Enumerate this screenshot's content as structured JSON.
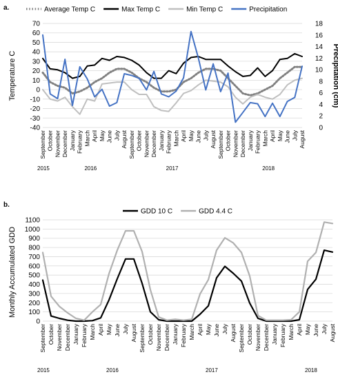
{
  "chart_data": [
    {
      "panel_label": "a.",
      "type": "line",
      "x": [
        "September",
        "October",
        "November",
        "December",
        "January",
        "February",
        "March",
        "April",
        "May",
        "June",
        "July",
        "August",
        "September",
        "October",
        "November",
        "December",
        "January",
        "February",
        "March",
        "April",
        "May",
        "June",
        "July",
        "August",
        "September",
        "October",
        "November",
        "December",
        "January",
        "February",
        "March",
        "April",
        "May",
        "June",
        "July",
        "August"
      ],
      "year_labels": [
        {
          "text": "2015",
          "index": 0
        },
        {
          "text": "2016",
          "index": 6
        },
        {
          "text": "2017",
          "index": 17
        },
        {
          "text": "2018",
          "index": 30
        }
      ],
      "ylabel": "Temperature C",
      "y2label": "Precipitation (cm)",
      "ylim": [
        -40,
        70
      ],
      "yticks": [
        -40,
        -30,
        -20,
        -10,
        0,
        10,
        20,
        30,
        40,
        50,
        60,
        70
      ],
      "y2lim": [
        0,
        18
      ],
      "y2ticks": [
        0,
        2,
        4,
        6,
        8,
        10,
        12,
        14,
        16,
        18
      ],
      "legend_position": "top",
      "series": [
        {
          "name": "Average Temp C",
          "axis": "left",
          "color": "#808080",
          "dash": "dotted",
          "values": [
            18,
            8,
            4,
            2,
            -4,
            -2,
            2,
            8,
            12,
            18,
            22,
            22,
            18,
            12,
            8,
            2,
            -2,
            -2,
            0,
            8,
            12,
            18,
            22,
            22,
            20,
            12,
            4,
            -4,
            -6,
            -4,
            0,
            4,
            12,
            18,
            24,
            24
          ]
        },
        {
          "name": "Max Temp C",
          "axis": "left",
          "color": "#000000",
          "dash": "solid",
          "values": [
            33,
            22,
            21,
            18,
            12,
            14,
            25,
            26,
            33,
            31,
            35,
            34,
            31,
            26,
            18,
            12,
            12,
            20,
            17,
            28,
            34,
            35,
            32,
            32,
            32,
            25,
            19,
            14,
            15,
            23,
            14,
            20,
            32,
            33,
            38,
            35
          ]
        },
        {
          "name": "Min Temp C",
          "axis": "left",
          "color": "#bfbfbf",
          "dash": "solid",
          "values": [
            0,
            -10,
            -12,
            -8,
            -18,
            -26,
            -10,
            -12,
            6,
            7,
            8,
            8,
            0,
            -5,
            -5,
            -18,
            -22,
            -23,
            -14,
            -4,
            -1,
            5,
            10,
            9,
            8,
            3,
            -8,
            -15,
            -8,
            -5,
            -8,
            -10,
            -5,
            5,
            10,
            12
          ]
        },
        {
          "name": "Precipitation",
          "axis": "right",
          "color": "#4472c4",
          "dash": "solid",
          "values": [
            16,
            5.8,
            5,
            11.8,
            3.8,
            10.5,
            8.4,
            5.3,
            6.6,
            3.7,
            4.3,
            9.3,
            9.0,
            8.5,
            6.5,
            9.7,
            5.8,
            5.3,
            6.3,
            8.6,
            16.6,
            12,
            6.5,
            11,
            6.2,
            9.4,
            0.9,
            2.6,
            4.3,
            4.1,
            1.9,
            4.2,
            1.9,
            4.5,
            5.2,
            10.6
          ]
        }
      ]
    },
    {
      "panel_label": "b.",
      "type": "line",
      "x": [
        "September",
        "October",
        "November",
        "December",
        "January",
        "February",
        "March",
        "April",
        "May",
        "June",
        "July",
        "August",
        "September",
        "October",
        "November",
        "December",
        "January",
        "February",
        "March",
        "April",
        "May",
        "June",
        "July",
        "August",
        "September",
        "October",
        "November",
        "December",
        "January",
        "February",
        "March",
        "April",
        "May",
        "June",
        "July",
        "August"
      ],
      "year_labels": [
        {
          "text": "2015",
          "index": 0
        },
        {
          "text": "2016",
          "index": 8
        },
        {
          "text": "2017",
          "index": 20
        },
        {
          "text": "2018",
          "index": 32
        }
      ],
      "ylabel": "Monthly Accumulated GDD",
      "ylim": [
        0,
        1100
      ],
      "yticks": [
        0,
        100,
        200,
        300,
        400,
        500,
        600,
        700,
        800,
        900,
        1000,
        1100
      ],
      "legend_position": "top",
      "series": [
        {
          "name": "GDD 10 C",
          "color": "#000000",
          "values": [
            445,
            55,
            30,
            10,
            0,
            0,
            5,
            35,
            230,
            460,
            675,
            675,
            410,
            100,
            15,
            0,
            0,
            0,
            0,
            75,
            165,
            470,
            595,
            520,
            435,
            195,
            30,
            0,
            0,
            0,
            0,
            15,
            345,
            455,
            770,
            750
          ]
        },
        {
          "name": "GDD 4.4 C",
          "color": "#b0b0b0",
          "values": [
            745,
            270,
            160,
            90,
            30,
            10,
            100,
            180,
            515,
            770,
            980,
            980,
            755,
            340,
            45,
            10,
            20,
            10,
            20,
            295,
            450,
            770,
            905,
            850,
            745,
            490,
            60,
            10,
            10,
            10,
            15,
            100,
            650,
            745,
            1075,
            1060
          ]
        }
      ]
    }
  ]
}
